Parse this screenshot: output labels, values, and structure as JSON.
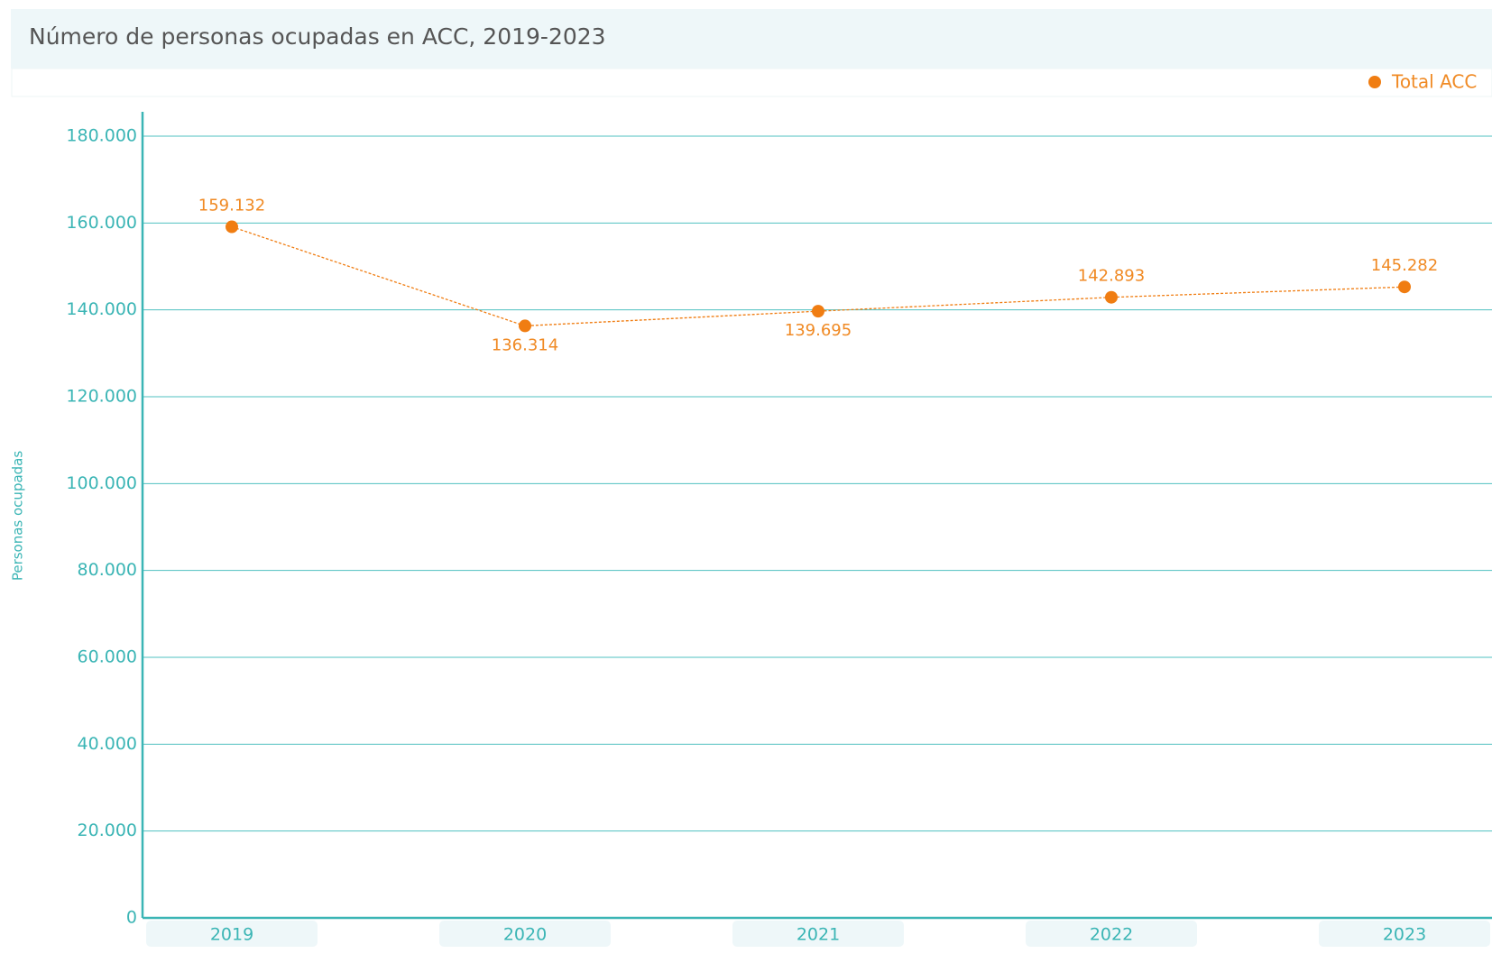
{
  "chart_data": {
    "type": "line",
    "title": "Número de personas ocupadas en ACC, 2019-2023",
    "y_label": "Personas ocupadas",
    "categories": [
      "2019",
      "2020",
      "2021",
      "2022",
      "2023"
    ],
    "series": [
      {
        "name": "Total ACC",
        "color": "#f07d12",
        "values": [
          159132,
          136314,
          139695,
          142893,
          145282
        ],
        "value_labels": [
          "159.132",
          "136.314",
          "139.695",
          "142.893",
          "145.282"
        ]
      }
    ],
    "ylim": [
      0,
      180000
    ],
    "yticks": [
      0,
      {
        "value": 20000,
        "label": "20.000"
      },
      {
        "value": 40000,
        "label": "40.000"
      },
      {
        "value": 60000,
        "label": "60.000"
      },
      {
        "value": 80000,
        "label": "80.000"
      },
      {
        "value": 100000,
        "label": "100.000"
      },
      {
        "value": 120000,
        "label": "120.000"
      },
      {
        "value": 140000,
        "label": "140.000"
      },
      {
        "value": 160000,
        "label": "160.000"
      },
      {
        "value": 180000,
        "label": "180.000"
      }
    ],
    "grid": true,
    "legend": "top-right"
  }
}
